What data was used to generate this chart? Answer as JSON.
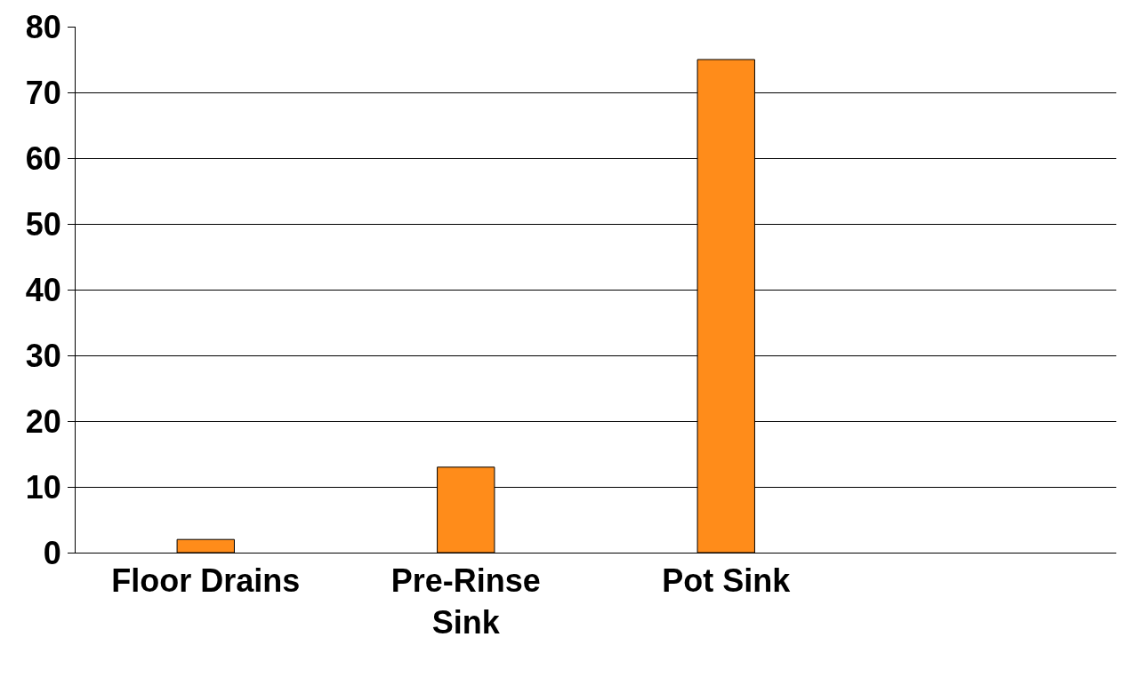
{
  "chart_data": {
    "type": "bar",
    "categories": [
      "Floor Drains",
      "Pre-Rinse Sink",
      "Pot Sink",
      null
    ],
    "values": [
      2,
      13,
      75,
      null
    ],
    "color": "#ff8c1a",
    "ylim": [
      0,
      80
    ],
    "yticks": [
      0,
      10,
      20,
      30,
      40,
      50,
      60,
      70,
      80
    ],
    "grid": "y"
  }
}
